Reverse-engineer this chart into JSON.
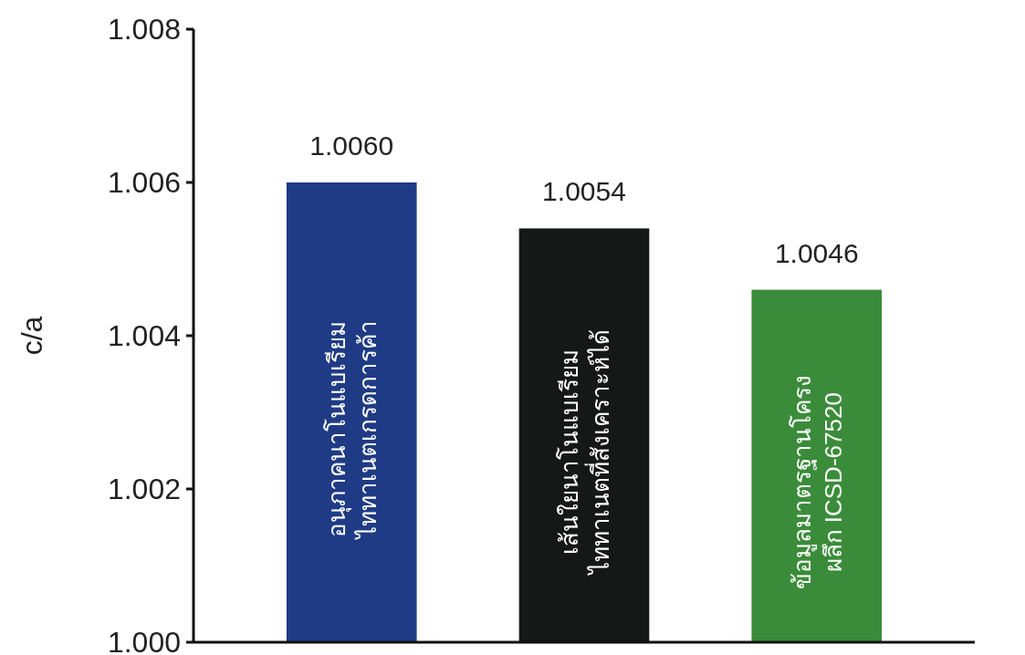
{
  "chart_data": {
    "type": "bar",
    "ylabel": "c/a",
    "categories": [
      "อนุภาคนาโนแบเรียม\nไททาเนตเกรดการค้า",
      "เส้นใยนาโนแบเรียม\nไททาเนตที่สังเคราะห์ได้",
      "ข้อมูลมาตรฐานโครง\nผลึก ICSD-67520"
    ],
    "values": [
      1.006,
      1.0054,
      1.0046
    ],
    "colors": [
      "#1f3b85",
      "#151816",
      "#3b8c3a"
    ],
    "value_labels": [
      "1.0060",
      "1.0054",
      "1.0046"
    ],
    "ylim": [
      1.0,
      1.008
    ],
    "yticks": [
      {
        "value": 1.0,
        "label": "1.000"
      },
      {
        "value": 1.002,
        "label": "1.002"
      },
      {
        "value": 1.004,
        "label": "1.004"
      },
      {
        "value": 1.006,
        "label": "1.006"
      },
      {
        "value": 1.008,
        "label": "1.008"
      }
    ],
    "grid": false
  }
}
